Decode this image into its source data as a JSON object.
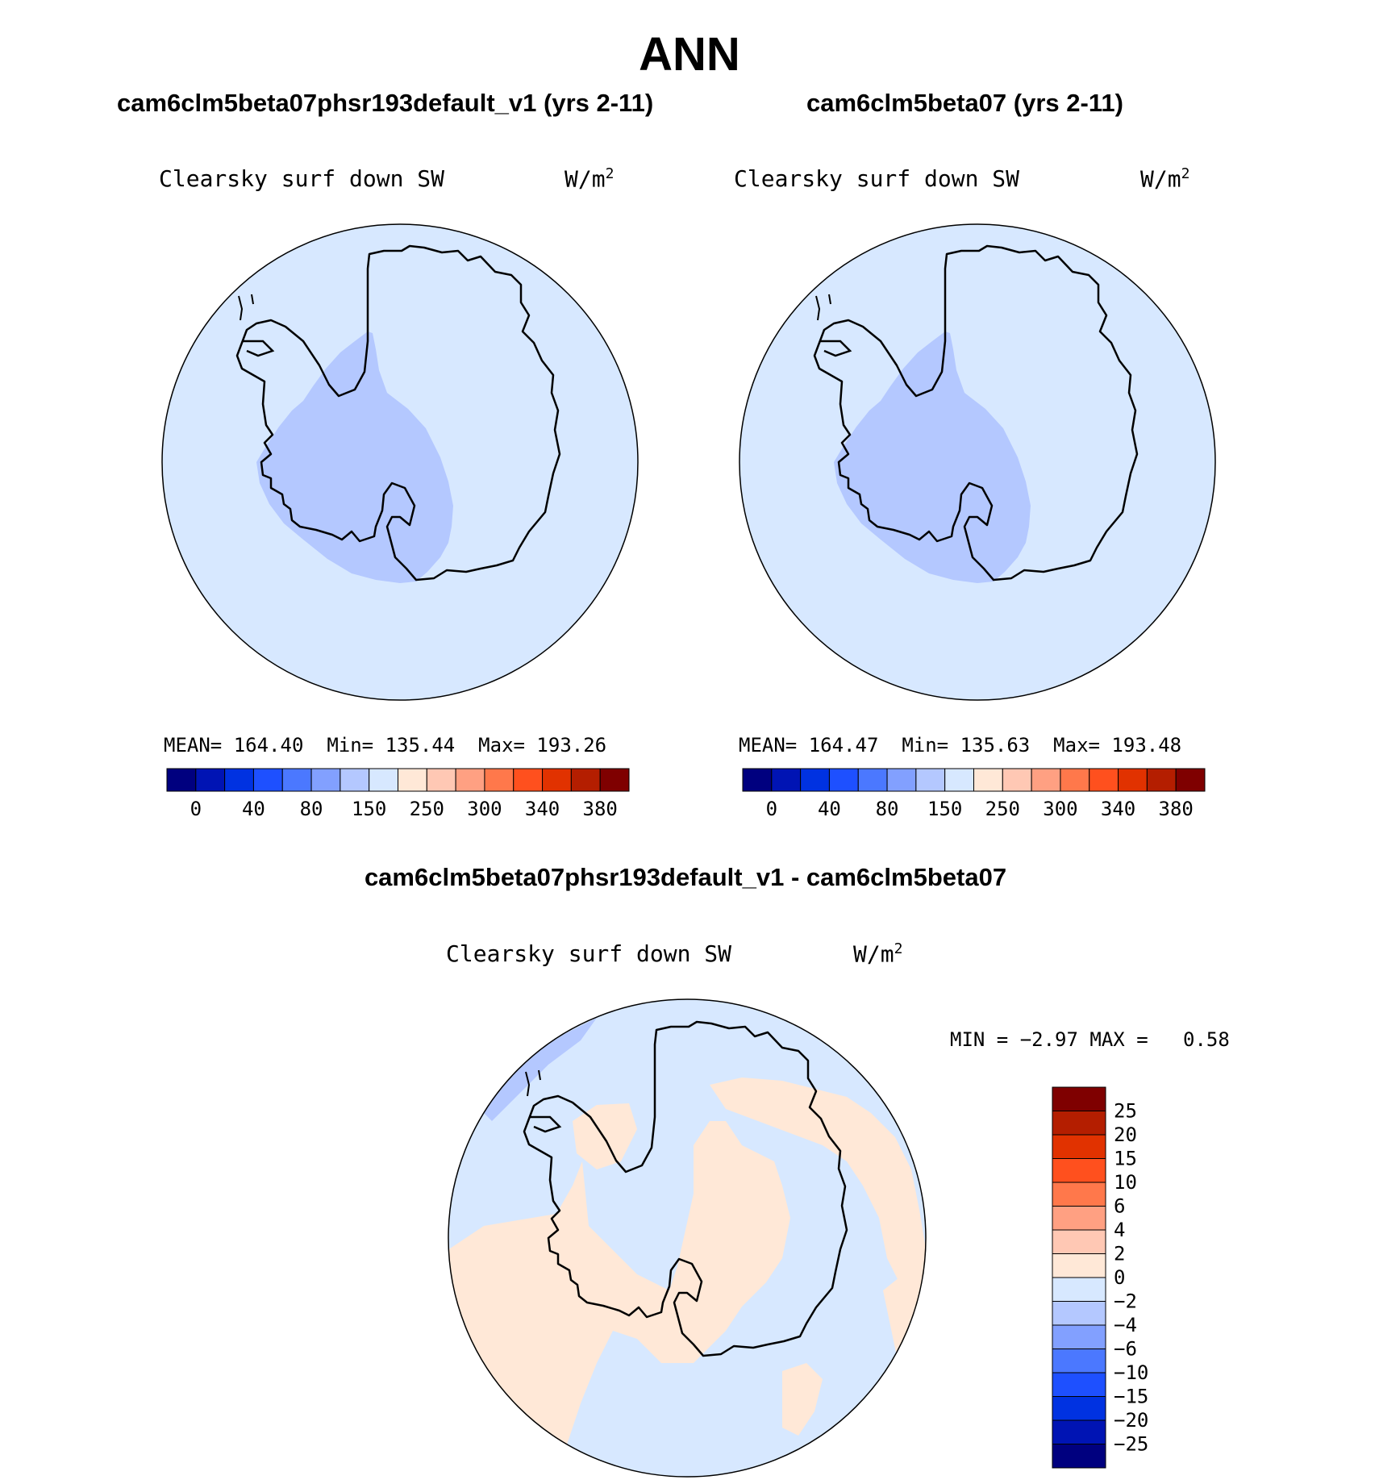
{
  "page": {
    "title": "ANN"
  },
  "panels": [
    {
      "title": "cam6clm5beta07phsr193default_v1 (yrs 2-11)",
      "field": "Clearsky surf down SW",
      "units_base": "W/m",
      "units_sup": "2",
      "mean_label": "MEAN=",
      "mean": "164.40",
      "min_label": "Min=",
      "min": "135.44",
      "max_label": "Max=",
      "max": "193.26"
    },
    {
      "title": "cam6clm5beta07 (yrs 2-11)",
      "field": "Clearsky surf down SW",
      "units_base": "W/m",
      "units_sup": "2",
      "mean_label": "MEAN=",
      "mean": "164.47",
      "min_label": "Min=",
      "min": "135.63",
      "max_label": "Max=",
      "max": "193.48"
    }
  ],
  "diff_panel": {
    "title": "cam6clm5beta07phsr193default_v1 - cam6clm5beta07",
    "field": "Clearsky surf down SW",
    "units_base": "W/m",
    "units_sup": "2",
    "min_label": "MIN =",
    "min": "−2.97",
    "max_label": "MAX =",
    "max": "0.58"
  },
  "chart_data": [
    {
      "type": "heatmap",
      "projection": "south-polar-stereographic",
      "title": "cam6clm5beta07phsr193default_v1 (yrs 2-11)",
      "field": "Clearsky surf down SW",
      "units": "W/m2",
      "mean": 164.4,
      "min": 135.44,
      "max": 193.26,
      "colorbar_ticks": [
        0,
        40,
        80,
        150,
        250,
        300,
        340,
        380
      ],
      "colorbar_colors": [
        "#00007f",
        "#0014b4",
        "#0032e1",
        "#1e50ff",
        "#4b78ff",
        "#82a0ff",
        "#b4c8ff",
        "#d7e8ff",
        "#ffe8d7",
        "#ffc8b4",
        "#ffa082",
        "#ff784b",
        "#ff501e",
        "#e13200",
        "#b41e00",
        "#7f0000"
      ],
      "regions": [
        {
          "name": "background-ocean",
          "value_range": [
            150,
            200
          ]
        },
        {
          "name": "west-antarctica-lobe",
          "value_range": [
            80,
            150
          ]
        }
      ]
    },
    {
      "type": "heatmap",
      "projection": "south-polar-stereographic",
      "title": "cam6clm5beta07 (yrs 2-11)",
      "field": "Clearsky surf down SW",
      "units": "W/m2",
      "mean": 164.47,
      "min": 135.63,
      "max": 193.48,
      "colorbar_ticks": [
        0,
        40,
        80,
        150,
        250,
        300,
        340,
        380
      ],
      "colorbar_colors": [
        "#00007f",
        "#0014b4",
        "#0032e1",
        "#1e50ff",
        "#4b78ff",
        "#82a0ff",
        "#b4c8ff",
        "#d7e8ff",
        "#ffe8d7",
        "#ffc8b4",
        "#ffa082",
        "#ff784b",
        "#ff501e",
        "#e13200",
        "#b41e00",
        "#7f0000"
      ],
      "regions": [
        {
          "name": "background-ocean",
          "value_range": [
            150,
            200
          ]
        },
        {
          "name": "west-antarctica-lobe",
          "value_range": [
            80,
            150
          ]
        }
      ]
    },
    {
      "type": "heatmap",
      "projection": "south-polar-stereographic",
      "title": "cam6clm5beta07phsr193default_v1 - cam6clm5beta07",
      "field": "Clearsky surf down SW",
      "units": "W/m2",
      "min": -2.97,
      "max": 0.58,
      "colorbar_ticks": [
        25,
        20,
        15,
        10,
        6,
        4,
        2,
        0,
        -2,
        -4,
        -6,
        -10,
        -15,
        -20,
        -25
      ],
      "colorbar_tick_labels": [
        "25",
        "20",
        "15",
        "10",
        "6",
        "4",
        "2",
        "0",
        "−2",
        "−4",
        "−6",
        "−10",
        "−15",
        "−20",
        "−25"
      ],
      "colorbar_colors": [
        "#7f0000",
        "#b41e00",
        "#e13200",
        "#ff501e",
        "#ff784b",
        "#ffa082",
        "#ffc8b4",
        "#ffe8d7",
        "#d7e8ff",
        "#b4c8ff",
        "#82a0ff",
        "#4b78ff",
        "#1e50ff",
        "#0032e1",
        "#0014b4",
        "#00007f"
      ],
      "regions": [
        {
          "name": "positive-0-to-2",
          "value_range": [
            0,
            2
          ]
        },
        {
          "name": "negative-0-to-minus2",
          "value_range": [
            -2,
            0
          ]
        },
        {
          "name": "negative-minus2-to-minus4",
          "value_range": [
            -4,
            -2
          ]
        }
      ]
    }
  ]
}
